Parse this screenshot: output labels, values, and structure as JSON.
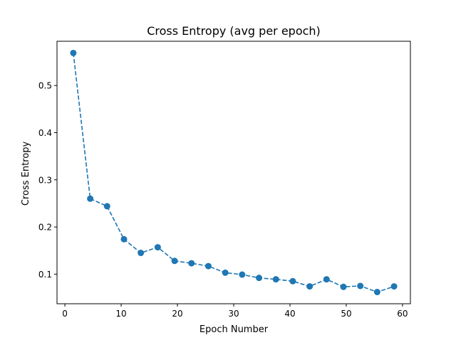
{
  "chart_data": {
    "type": "line",
    "title": "Cross Entropy (avg per epoch)",
    "xlabel": "Epoch Number",
    "ylabel": "Cross Entropy",
    "xlim": [
      -1.4,
      61.4
    ],
    "ylim": [
      0.0372,
      0.5938
    ],
    "xticks": [
      0,
      10,
      20,
      30,
      40,
      50,
      60
    ],
    "yticks": [
      0.1,
      0.2,
      0.3,
      0.4,
      0.5
    ],
    "x_tick_labels": [
      "0",
      "10",
      "20",
      "30",
      "40",
      "50",
      "60"
    ],
    "y_tick_labels": [
      "0.1",
      "0.2",
      "0.3",
      "0.4",
      "0.5"
    ],
    "grid": false,
    "line_style": "dashed",
    "marker": "circle",
    "color": "#1f77b4",
    "series": [
      {
        "x": [
          1.5,
          4.5,
          7.5,
          10.5,
          13.5,
          16.5,
          19.5,
          22.5,
          25.5,
          28.5,
          31.5,
          34.5,
          37.5,
          40.5,
          43.5,
          46.5,
          49.5,
          52.5,
          55.5,
          58.5
        ],
        "y": [
          0.569,
          0.26,
          0.244,
          0.174,
          0.145,
          0.157,
          0.128,
          0.123,
          0.117,
          0.103,
          0.099,
          0.092,
          0.089,
          0.085,
          0.074,
          0.089,
          0.073,
          0.075,
          0.062,
          0.074
        ]
      }
    ]
  }
}
